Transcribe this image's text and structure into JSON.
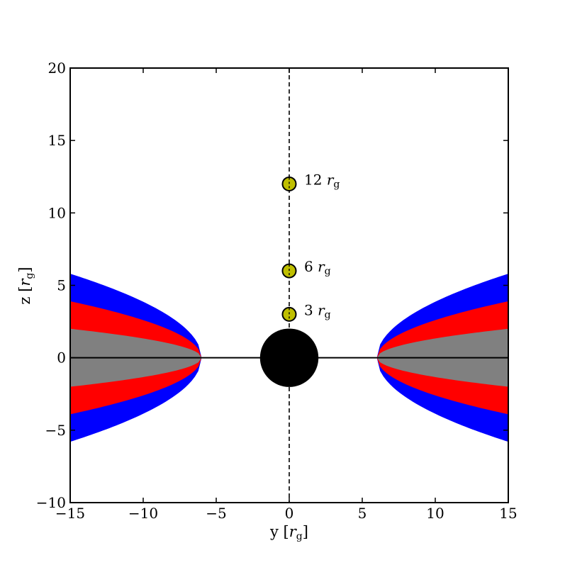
{
  "chart_data": {
    "type": "diagram",
    "xlabel": {
      "main": "y [",
      "symbol": "r",
      "sub": "g",
      "close": "]"
    },
    "ylabel": {
      "main": "z [",
      "symbol": "r",
      "sub": "g",
      "close": "]"
    },
    "xlim": [
      -15,
      15
    ],
    "ylim": [
      -10,
      20
    ],
    "xticks": [
      {
        "value": -15,
        "label": "−15"
      },
      {
        "value": -10,
        "label": "−10"
      },
      {
        "value": -5,
        "label": "−5"
      },
      {
        "value": 0,
        "label": "0"
      },
      {
        "value": 5,
        "label": "5"
      },
      {
        "value": 10,
        "label": "10"
      },
      {
        "value": 15,
        "label": "15"
      }
    ],
    "yticks": [
      {
        "value": -10,
        "label": "−10"
      },
      {
        "value": -5,
        "label": "−5"
      },
      {
        "value": 0,
        "label": "0"
      },
      {
        "value": 5,
        "label": "5"
      },
      {
        "value": 10,
        "label": "10"
      },
      {
        "value": 15,
        "label": "15"
      },
      {
        "value": 20,
        "label": "20"
      }
    ],
    "disk": {
      "inner_edge": 6,
      "outer_edge": 15,
      "layers": [
        {
          "name": "blue",
          "color": "#0000ff",
          "half_thickness_at_edge": 5.8
        },
        {
          "name": "red",
          "color": "#ff0000",
          "half_thickness_at_edge": 3.9
        },
        {
          "name": "gray",
          "color": "#808080",
          "half_thickness_at_edge": 2.0
        }
      ]
    },
    "black_hole": {
      "center": [
        0,
        0
      ],
      "radius": 2,
      "color": "#000000"
    },
    "sources": [
      {
        "z": 3,
        "value": "3",
        "symbol": "r",
        "sub": "g"
      },
      {
        "z": 6,
        "value": "6",
        "symbol": "r",
        "sub": "g"
      },
      {
        "z": 12,
        "value": "12",
        "symbol": "r",
        "sub": "g"
      }
    ],
    "source_color": "#bfbf00",
    "axis_line": {
      "x": 0,
      "style": "dashed"
    },
    "midplane": {
      "z": 0
    }
  }
}
